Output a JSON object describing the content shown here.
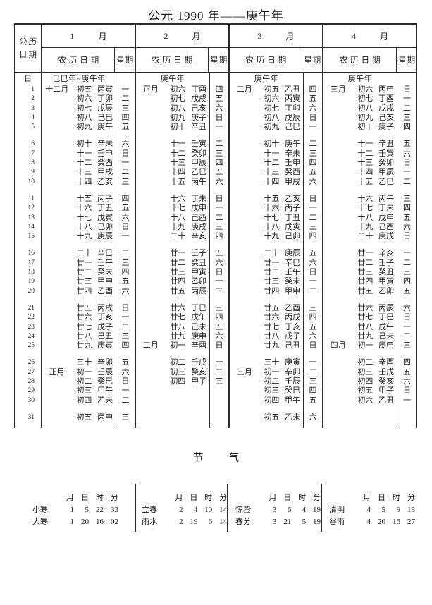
{
  "title": "公元 1990 年——庚午年",
  "calendar": {
    "corner": {
      "line1": "公历",
      "line2": "日期"
    },
    "sub_headers": {
      "lunar": "农历日期",
      "week": "星期"
    },
    "day_row_label": "日",
    "months": [
      {
        "num": "1",
        "unit": "月",
        "year_note": "己巳年~庚午年",
        "days": [
          [
            "十二月",
            "初五",
            "丙寅",
            "一"
          ],
          [
            "",
            "初六",
            "丁卯",
            "二"
          ],
          [
            "",
            "初七",
            "戊辰",
            "三"
          ],
          [
            "",
            "初八",
            "己巳",
            "四"
          ],
          [
            "",
            "初九",
            "庚午",
            "五"
          ],
          [
            "",
            "初十",
            "辛未",
            "六"
          ],
          [
            "",
            "十一",
            "壬申",
            "日"
          ],
          [
            "",
            "十二",
            "癸酉",
            "一"
          ],
          [
            "",
            "十三",
            "甲戌",
            "二"
          ],
          [
            "",
            "十四",
            "乙亥",
            "三"
          ],
          [
            "",
            "十五",
            "丙子",
            "四"
          ],
          [
            "",
            "十六",
            "丁丑",
            "五"
          ],
          [
            "",
            "十七",
            "戊寅",
            "六"
          ],
          [
            "",
            "十八",
            "己卯",
            "日"
          ],
          [
            "",
            "十九",
            "庚辰",
            "一"
          ],
          [
            "",
            "二十",
            "辛巳",
            "二"
          ],
          [
            "",
            "廿一",
            "壬午",
            "三"
          ],
          [
            "",
            "廿二",
            "癸未",
            "四"
          ],
          [
            "",
            "廿三",
            "甲申",
            "五"
          ],
          [
            "",
            "廿四",
            "乙酉",
            "六"
          ],
          [
            "",
            "廿五",
            "丙戌",
            "日"
          ],
          [
            "",
            "廿六",
            "丁亥",
            "一"
          ],
          [
            "",
            "廿七",
            "戊子",
            "二"
          ],
          [
            "",
            "廿八",
            "己丑",
            "三"
          ],
          [
            "",
            "廿九",
            "庚寅",
            "四"
          ],
          [
            "",
            "三十",
            "辛卯",
            "五"
          ],
          [
            "正月",
            "初一",
            "壬辰",
            "六"
          ],
          [
            "",
            "初二",
            "癸巳",
            "日"
          ],
          [
            "",
            "初三",
            "甲午",
            "一"
          ],
          [
            "",
            "初四",
            "乙未",
            "二"
          ],
          [
            "",
            "初五",
            "丙申",
            "三"
          ]
        ]
      },
      {
        "num": "2",
        "unit": "月",
        "year_note": "庚午年",
        "days": [
          [
            "正月",
            "初六",
            "丁酉",
            "四"
          ],
          [
            "",
            "初七",
            "戊戌",
            "五"
          ],
          [
            "",
            "初八",
            "己亥",
            "六"
          ],
          [
            "",
            "初九",
            "庚子",
            "日"
          ],
          [
            "",
            "初十",
            "辛丑",
            "一"
          ],
          [
            "",
            "十一",
            "壬寅",
            "二"
          ],
          [
            "",
            "十二",
            "癸卯",
            "三"
          ],
          [
            "",
            "十三",
            "甲辰",
            "四"
          ],
          [
            "",
            "十四",
            "乙巳",
            "五"
          ],
          [
            "",
            "十五",
            "丙午",
            "六"
          ],
          [
            "",
            "十六",
            "丁未",
            "日"
          ],
          [
            "",
            "十七",
            "戊申",
            "一"
          ],
          [
            "",
            "十八",
            "己酉",
            "二"
          ],
          [
            "",
            "十九",
            "庚戌",
            "三"
          ],
          [
            "",
            "二十",
            "辛亥",
            "四"
          ],
          [
            "",
            "廿一",
            "壬子",
            "五"
          ],
          [
            "",
            "廿二",
            "癸丑",
            "六"
          ],
          [
            "",
            "廿三",
            "甲寅",
            "日"
          ],
          [
            "",
            "廿四",
            "乙卯",
            "一"
          ],
          [
            "",
            "廿五",
            "丙辰",
            "二"
          ],
          [
            "",
            "廿六",
            "丁巳",
            "三"
          ],
          [
            "",
            "廿七",
            "戊午",
            "四"
          ],
          [
            "",
            "廿八",
            "己未",
            "五"
          ],
          [
            "",
            "廿九",
            "庚申",
            "六"
          ],
          [
            "二月",
            "初一",
            "辛酉",
            "日"
          ],
          [
            "",
            "初二",
            "壬戌",
            "一"
          ],
          [
            "",
            "初三",
            "癸亥",
            "二"
          ],
          [
            "",
            "初四",
            "甲子",
            "三"
          ]
        ]
      },
      {
        "num": "3",
        "unit": "月",
        "year_note": "庚午年",
        "days": [
          [
            "二月",
            "初五",
            "乙丑",
            "四"
          ],
          [
            "",
            "初六",
            "丙寅",
            "五"
          ],
          [
            "",
            "初七",
            "丁卯",
            "六"
          ],
          [
            "",
            "初八",
            "戊辰",
            "日"
          ],
          [
            "",
            "初九",
            "己巳",
            "一"
          ],
          [
            "",
            "初十",
            "庚午",
            "二"
          ],
          [
            "",
            "十一",
            "辛未",
            "三"
          ],
          [
            "",
            "十二",
            "壬申",
            "四"
          ],
          [
            "",
            "十三",
            "癸酉",
            "五"
          ],
          [
            "",
            "十四",
            "甲戌",
            "六"
          ],
          [
            "",
            "十五",
            "乙亥",
            "日"
          ],
          [
            "",
            "十六",
            "丙子",
            "一"
          ],
          [
            "",
            "十七",
            "丁丑",
            "二"
          ],
          [
            "",
            "十八",
            "戊寅",
            "三"
          ],
          [
            "",
            "十九",
            "己卯",
            "四"
          ],
          [
            "",
            "二十",
            "庚辰",
            "五"
          ],
          [
            "",
            "廿一",
            "辛巳",
            "六"
          ],
          [
            "",
            "廿二",
            "壬午",
            "日"
          ],
          [
            "",
            "廿三",
            "癸未",
            "一"
          ],
          [
            "",
            "廿四",
            "甲申",
            "二"
          ],
          [
            "",
            "廿五",
            "乙酉",
            "三"
          ],
          [
            "",
            "廿六",
            "丙戌",
            "四"
          ],
          [
            "",
            "廿七",
            "丁亥",
            "五"
          ],
          [
            "",
            "廿八",
            "戊子",
            "六"
          ],
          [
            "",
            "廿九",
            "己丑",
            "日"
          ],
          [
            "",
            "三十",
            "庚寅",
            "一"
          ],
          [
            "三月",
            "初一",
            "辛卯",
            "二"
          ],
          [
            "",
            "初二",
            "壬辰",
            "三"
          ],
          [
            "",
            "初三",
            "癸巳",
            "四"
          ],
          [
            "",
            "初四",
            "甲午",
            "五"
          ],
          [
            "",
            "初五",
            "乙未",
            "六"
          ]
        ]
      },
      {
        "num": "4",
        "unit": "月",
        "year_note": "庚午年",
        "days": [
          [
            "三月",
            "初六",
            "丙申",
            "日"
          ],
          [
            "",
            "初七",
            "丁酉",
            "一"
          ],
          [
            "",
            "初八",
            "戊戌",
            "二"
          ],
          [
            "",
            "初九",
            "己亥",
            "三"
          ],
          [
            "",
            "初十",
            "庚子",
            "四"
          ],
          [
            "",
            "十一",
            "辛丑",
            "五"
          ],
          [
            "",
            "十二",
            "壬寅",
            "六"
          ],
          [
            "",
            "十三",
            "癸卯",
            "日"
          ],
          [
            "",
            "十四",
            "甲辰",
            "一"
          ],
          [
            "",
            "十五",
            "乙巳",
            "二"
          ],
          [
            "",
            "十六",
            "丙午",
            "三"
          ],
          [
            "",
            "十七",
            "丁未",
            "四"
          ],
          [
            "",
            "十八",
            "戊申",
            "五"
          ],
          [
            "",
            "十九",
            "己酉",
            "六"
          ],
          [
            "",
            "二十",
            "庚戌",
            "日"
          ],
          [
            "",
            "廿一",
            "辛亥",
            "一"
          ],
          [
            "",
            "廿二",
            "壬子",
            "二"
          ],
          [
            "",
            "廿三",
            "癸丑",
            "三"
          ],
          [
            "",
            "廿四",
            "甲寅",
            "四"
          ],
          [
            "",
            "廿五",
            "乙卯",
            "五"
          ],
          [
            "",
            "廿六",
            "丙辰",
            "六"
          ],
          [
            "",
            "廿七",
            "丁巳",
            "日"
          ],
          [
            "",
            "廿八",
            "戊午",
            "一"
          ],
          [
            "",
            "廿九",
            "己未",
            "二"
          ],
          [
            "四月",
            "初一",
            "庚申",
            "三"
          ],
          [
            "",
            "初二",
            "辛酉",
            "四"
          ],
          [
            "",
            "初三",
            "壬戌",
            "五"
          ],
          [
            "",
            "初四",
            "癸亥",
            "六"
          ],
          [
            "",
            "初五",
            "甲子",
            "日"
          ],
          [
            "",
            "初六",
            "乙丑",
            "一"
          ]
        ]
      }
    ]
  },
  "jieqi": {
    "title": [
      "节",
      "气"
    ],
    "col_headers": [
      "月",
      "日",
      "时",
      "分"
    ],
    "groups": [
      [
        {
          "name": "小寒",
          "values": [
            "1",
            "5",
            "22",
            "33"
          ]
        },
        {
          "name": "大寒",
          "values": [
            "1",
            "20",
            "16",
            "02"
          ]
        }
      ],
      [
        {
          "name": "立春",
          "values": [
            "2",
            "4",
            "10",
            "14"
          ]
        },
        {
          "name": "雨水",
          "values": [
            "2",
            "19",
            "6",
            "14"
          ]
        }
      ],
      [
        {
          "name": "惊蛰",
          "values": [
            "3",
            "6",
            "4",
            "19"
          ]
        },
        {
          "name": "春分",
          "values": [
            "3",
            "21",
            "5",
            "19"
          ]
        }
      ],
      [
        {
          "name": "清明",
          "values": [
            "4",
            "5",
            "9",
            "13"
          ]
        },
        {
          "name": "谷雨",
          "values": [
            "4",
            "20",
            "16",
            "27"
          ]
        }
      ]
    ]
  }
}
